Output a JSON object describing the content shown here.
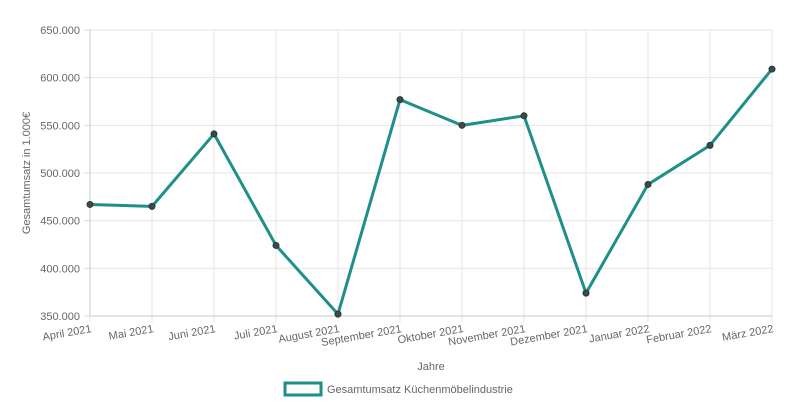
{
  "chart_data": {
    "type": "line",
    "xlabel": "Jahre",
    "ylabel": "Gesamtumsatz in 1.000€",
    "ylim": [
      350000,
      650000
    ],
    "ytick_step": 50000,
    "yticks": [
      "350.000",
      "400.000",
      "450.000",
      "500.000",
      "550.000",
      "600.000",
      "650.000"
    ],
    "grid": true,
    "legend_position": "bottom",
    "categories": [
      "April 2021",
      "Mai 2021",
      "Juni 2021",
      "Juli 2021",
      "August 2021",
      "September 2021",
      "Oktober 2021",
      "November 2021",
      "Dezember 2021",
      "Januar 2022",
      "Februar 2022",
      "März 2022"
    ],
    "series": [
      {
        "name": "Gesamtumsatz Küchenmöbelindustrie",
        "color": "#1f8f8a",
        "values": [
          467000,
          465000,
          541000,
          424000,
          352000,
          577000,
          550000,
          560000,
          374000,
          488000,
          529000,
          609000
        ]
      }
    ]
  }
}
